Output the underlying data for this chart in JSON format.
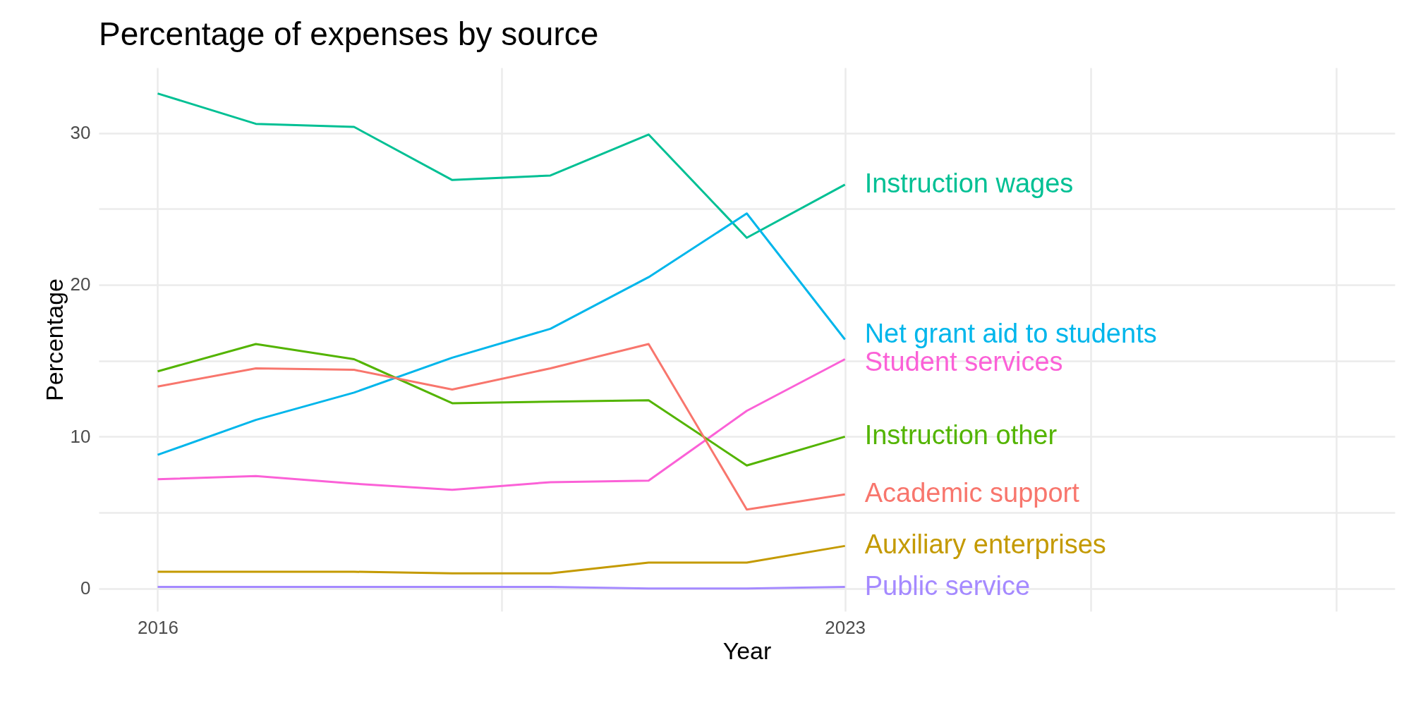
{
  "chart_data": {
    "type": "line",
    "title": "Percentage of expenses by source",
    "xlabel": "Year",
    "ylabel": "Percentage",
    "x": [
      2016,
      2017,
      2018,
      2019,
      2020,
      2021,
      2022,
      2023
    ],
    "xlim": [
      2015.4,
      2028.6
    ],
    "xticks": [
      2016,
      {
        "value": 2019.5,
        "label": null
      },
      2023,
      {
        "value": 2025.5,
        "label": null
      },
      {
        "value": 2028,
        "label": null
      }
    ],
    "ylim": [
      -1.5,
      34.3
    ],
    "yticks": [
      0,
      {
        "value": 5,
        "label": null
      },
      10,
      {
        "value": 15,
        "label": null
      },
      20,
      {
        "value": 25,
        "label": null
      },
      30
    ],
    "grid": true,
    "legend": false,
    "line_style": "solid",
    "marker": "none",
    "series": [
      {
        "name": "Instruction wages",
        "color": "#00c094",
        "values": [
          32.6,
          30.6,
          30.4,
          26.9,
          27.2,
          29.9,
          23.1,
          26.6
        ]
      },
      {
        "name": "Net grant aid to students",
        "color": "#00b6eb",
        "values": [
          8.8,
          11.1,
          12.9,
          15.2,
          17.1,
          20.5,
          24.7,
          16.4
        ]
      },
      {
        "name": "Student services",
        "color": "#fb61d7",
        "values": [
          7.2,
          7.4,
          6.9,
          6.5,
          7.0,
          7.1,
          11.7,
          15.1
        ]
      },
      {
        "name": "Instruction other",
        "color": "#53b400",
        "values": [
          14.3,
          16.1,
          15.1,
          12.2,
          12.3,
          12.4,
          8.1,
          10.0
        ]
      },
      {
        "name": "Academic support",
        "color": "#f8766d",
        "values": [
          13.3,
          14.5,
          14.4,
          13.1,
          14.5,
          16.1,
          5.2,
          6.2
        ]
      },
      {
        "name": "Auxiliary enterprises",
        "color": "#c49a00",
        "values": [
          1.1,
          1.1,
          1.1,
          1.0,
          1.0,
          1.7,
          1.7,
          2.8
        ]
      },
      {
        "name": "Public service",
        "color": "#a58aff",
        "values": [
          0.1,
          0.1,
          0.1,
          0.1,
          0.1,
          0.0,
          0.0,
          0.1
        ]
      }
    ]
  }
}
